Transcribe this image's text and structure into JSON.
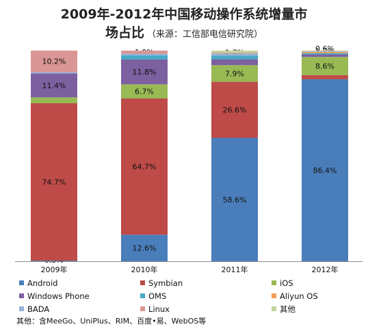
{
  "chart_data": {
    "type": "bar",
    "stacked": true,
    "title": "2009年-2012年中国移动操作系统增量市",
    "title_line2": "场占比",
    "subtitle": "（来源：工信部电信研究院）",
    "categories": [
      "2009年",
      "2010年",
      "2011年",
      "2012年"
    ],
    "ylim": [
      0,
      100
    ],
    "grid": false,
    "legend_position": "bottom",
    "series": [
      {
        "name": "Android",
        "color": "#4a7ebb",
        "values": [
          0.3,
          12.6,
          58.6,
          86.4
        ],
        "labels": [
          "0.3%",
          "12.6%",
          "58.6%",
          "86.4%"
        ]
      },
      {
        "name": "Symbian",
        "color": "#be4b48",
        "values": [
          74.7,
          64.7,
          26.6,
          2.0
        ],
        "labels": [
          "74.7%",
          "64.7%",
          "26.6%",
          "2.0%"
        ]
      },
      {
        "name": "iOS",
        "color": "#98b954",
        "values": [
          2.8,
          6.7,
          7.9,
          8.6
        ],
        "labels": [
          "2.8%",
          "6.7%",
          "7.9%",
          "8.6%"
        ]
      },
      {
        "name": "Windows Phone",
        "color": "#7d60a0",
        "values": [
          11.4,
          11.8,
          2.8,
          1.2
        ],
        "labels": [
          "11.4%",
          "11.8%",
          "2.8%",
          "1.2%"
        ]
      },
      {
        "name": "OMS",
        "color": "#46aac5",
        "values": [
          0,
          1.9,
          1.7,
          0.6
        ],
        "labels": [
          "",
          "1.9%",
          "1.7%",
          ""
        ]
      },
      {
        "name": "Aliyun OS",
        "color": "#f59d56",
        "values": [
          0,
          0,
          0,
          0.6
        ],
        "labels": [
          "",
          "",
          "",
          "0.6%"
        ]
      },
      {
        "name": "BADA",
        "color": "#95b3d7",
        "values": [
          0.6,
          0.8,
          1.0,
          0.3
        ],
        "labels": [
          "0.6%",
          "",
          "",
          ""
        ]
      },
      {
        "name": "Linux",
        "color": "#d99694",
        "values": [
          10.2,
          1.5,
          0.4,
          0.1
        ],
        "labels": [
          "10.2%",
          "",
          "",
          ""
        ]
      },
      {
        "name": "其他",
        "color": "#c3d69b",
        "values": [
          0,
          0,
          1.0,
          0.2
        ],
        "labels": [
          "",
          "",
          "",
          ""
        ]
      }
    ],
    "footnote": "其他：含MeeGo、UniPlus、RIM、百度•易、WebOS等"
  }
}
